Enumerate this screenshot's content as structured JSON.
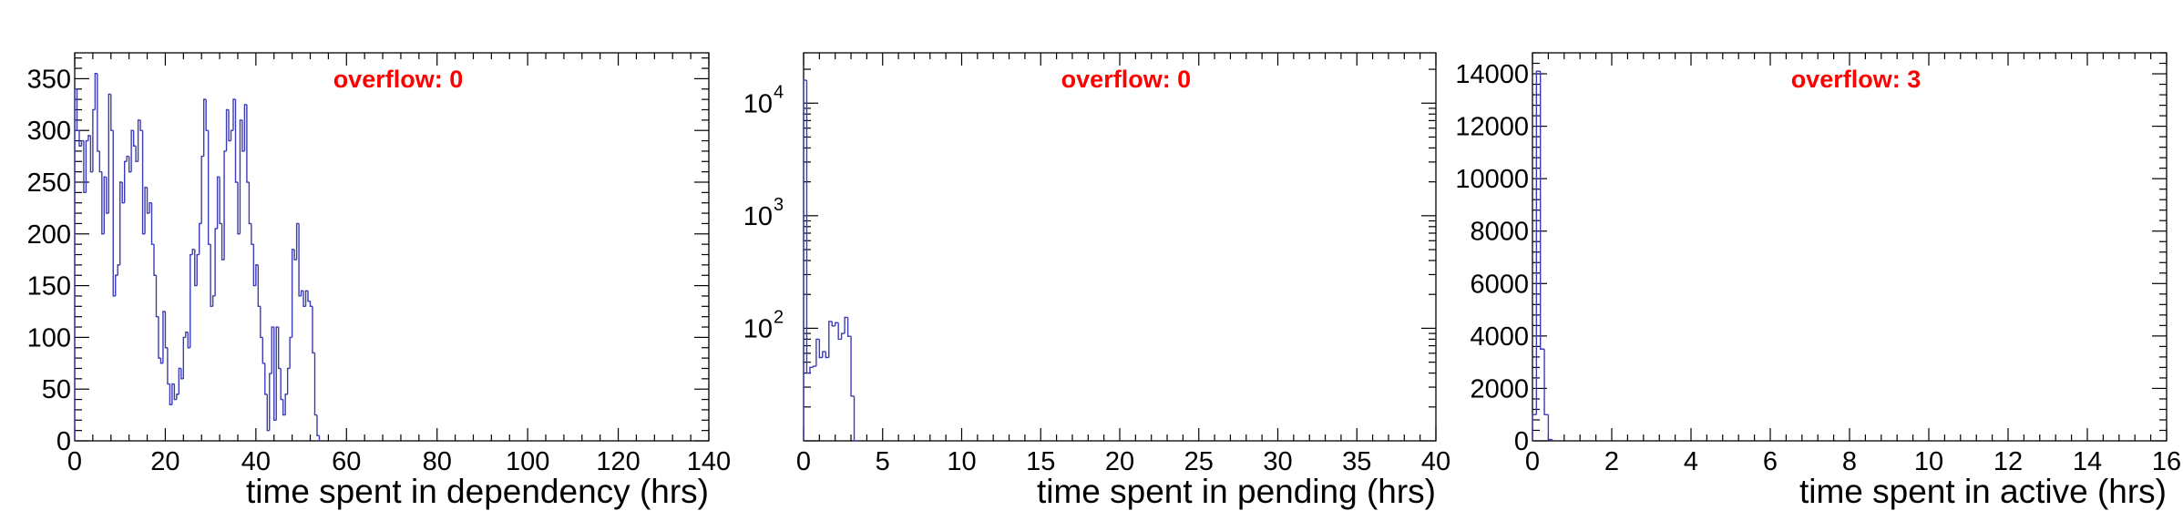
{
  "chart_data": [
    {
      "type": "histogram",
      "title": "",
      "xlabel": "time spent in dependency (hrs)",
      "ylabel": "",
      "xlim": [
        0,
        140
      ],
      "ylim": [
        0,
        375
      ],
      "xticks": [
        0,
        20,
        40,
        60,
        80,
        100,
        120,
        140
      ],
      "yticks": [
        0,
        50,
        100,
        150,
        200,
        250,
        300,
        350
      ],
      "yscale": "linear",
      "annotation": "overflow: 0",
      "annotation_color": "#ff0000",
      "line_color": "#3c3cb4",
      "bin_width": 0.5,
      "bins": [
        [
          0,
          340
        ],
        [
          0.5,
          300
        ],
        [
          1,
          285
        ],
        [
          1.5,
          290
        ],
        [
          2,
          240
        ],
        [
          2.5,
          290
        ],
        [
          3,
          295
        ],
        [
          3.5,
          260
        ],
        [
          4,
          320
        ],
        [
          4.5,
          355
        ],
        [
          5,
          280
        ],
        [
          5.5,
          260
        ],
        [
          6,
          200
        ],
        [
          6.5,
          255
        ],
        [
          7,
          220
        ],
        [
          7.5,
          335
        ],
        [
          8,
          300
        ],
        [
          8.5,
          140
        ],
        [
          9,
          160
        ],
        [
          9.5,
          170
        ],
        [
          10,
          250
        ],
        [
          10.5,
          230
        ],
        [
          11,
          270
        ],
        [
          11.5,
          275
        ],
        [
          12,
          260
        ],
        [
          12.5,
          300
        ],
        [
          13,
          285
        ],
        [
          13.5,
          270
        ],
        [
          14,
          310
        ],
        [
          14.5,
          300
        ],
        [
          15,
          200
        ],
        [
          15.5,
          245
        ],
        [
          16,
          220
        ],
        [
          16.5,
          230
        ],
        [
          17,
          190
        ],
        [
          17.5,
          160
        ],
        [
          18,
          120
        ],
        [
          18.5,
          80
        ],
        [
          19,
          75
        ],
        [
          19.5,
          125
        ],
        [
          20,
          90
        ],
        [
          20.5,
          55
        ],
        [
          21,
          35
        ],
        [
          21.5,
          55
        ],
        [
          22,
          40
        ],
        [
          22.5,
          45
        ],
        [
          23,
          70
        ],
        [
          23.5,
          60
        ],
        [
          24,
          100
        ],
        [
          24.5,
          105
        ],
        [
          25,
          90
        ],
        [
          25.5,
          180
        ],
        [
          26,
          185
        ],
        [
          26.5,
          150
        ],
        [
          27,
          180
        ],
        [
          27.5,
          210
        ],
        [
          28,
          275
        ],
        [
          28.5,
          330
        ],
        [
          29,
          300
        ],
        [
          29.5,
          190
        ],
        [
          30,
          130
        ],
        [
          30.5,
          140
        ],
        [
          31,
          205
        ],
        [
          31.5,
          255
        ],
        [
          32,
          210
        ],
        [
          32.5,
          175
        ],
        [
          33,
          280
        ],
        [
          33.5,
          320
        ],
        [
          34,
          290
        ],
        [
          34.5,
          300
        ],
        [
          35,
          330
        ],
        [
          35.5,
          250
        ],
        [
          36,
          200
        ],
        [
          36.5,
          310
        ],
        [
          37,
          280
        ],
        [
          37.5,
          325
        ],
        [
          38,
          250
        ],
        [
          38.5,
          210
        ],
        [
          39,
          190
        ],
        [
          39.5,
          150
        ],
        [
          40,
          170
        ],
        [
          40.5,
          130
        ],
        [
          41,
          100
        ],
        [
          41.5,
          75
        ],
        [
          42,
          45
        ],
        [
          42.5,
          10
        ],
        [
          43,
          65
        ],
        [
          43.5,
          110
        ],
        [
          44,
          20
        ],
        [
          44.5,
          110
        ],
        [
          45,
          70
        ],
        [
          45.5,
          40
        ],
        [
          46,
          25
        ],
        [
          46.5,
          45
        ],
        [
          47,
          70
        ],
        [
          47.5,
          100
        ],
        [
          48,
          185
        ],
        [
          48.5,
          175
        ],
        [
          49,
          210
        ],
        [
          49.5,
          140
        ],
        [
          50,
          145
        ],
        [
          50.5,
          130
        ],
        [
          51,
          145
        ],
        [
          51.5,
          135
        ],
        [
          52,
          130
        ],
        [
          52.5,
          85
        ],
        [
          53,
          25
        ],
        [
          53.5,
          5
        ]
      ]
    },
    {
      "type": "histogram",
      "title": "",
      "xlabel": "time spent in pending (hrs)",
      "ylabel": "",
      "xlim": [
        0,
        40
      ],
      "ylim": [
        10,
        28000
      ],
      "xticks": [
        0,
        5,
        10,
        15,
        20,
        25,
        30,
        35,
        40
      ],
      "yticks": [
        {
          "value": 100,
          "base": "10",
          "exp": "2"
        },
        {
          "value": 1000,
          "base": "10",
          "exp": "3"
        },
        {
          "value": 10000,
          "base": "10",
          "exp": "4"
        }
      ],
      "yscale": "log",
      "annotation": "overflow: 0",
      "annotation_color": "#ff0000",
      "line_color": "#3c3cb4",
      "bin_width": 0.2,
      "bins": [
        [
          0,
          16000
        ],
        [
          0.2,
          40
        ],
        [
          0.4,
          45
        ],
        [
          0.6,
          46
        ],
        [
          0.8,
          80
        ],
        [
          1,
          55
        ],
        [
          1.2,
          62
        ],
        [
          1.4,
          55
        ],
        [
          1.6,
          115
        ],
        [
          1.8,
          105
        ],
        [
          2,
          112
        ],
        [
          2.2,
          80
        ],
        [
          2.4,
          90
        ],
        [
          2.6,
          125
        ],
        [
          2.8,
          85
        ],
        [
          3,
          25
        ],
        [
          3.2,
          8
        ]
      ]
    },
    {
      "type": "histogram",
      "title": "",
      "xlabel": "time spent in active (hrs)",
      "ylabel": "",
      "xlim": [
        0,
        16
      ],
      "ylim": [
        0,
        14800
      ],
      "xticks": [
        0,
        2,
        4,
        6,
        8,
        10,
        12,
        14,
        16
      ],
      "yticks": [
        0,
        2000,
        4000,
        6000,
        8000,
        10000,
        12000,
        14000
      ],
      "yscale": "linear",
      "annotation": "overflow: 3",
      "annotation_color": "#ff0000",
      "line_color": "#3c3cb4",
      "bin_width": 0.1,
      "bins": [
        [
          0,
          1000
        ],
        [
          0.1,
          14100
        ],
        [
          0.2,
          3500
        ],
        [
          0.3,
          1000
        ],
        [
          0.4,
          50
        ]
      ]
    }
  ]
}
